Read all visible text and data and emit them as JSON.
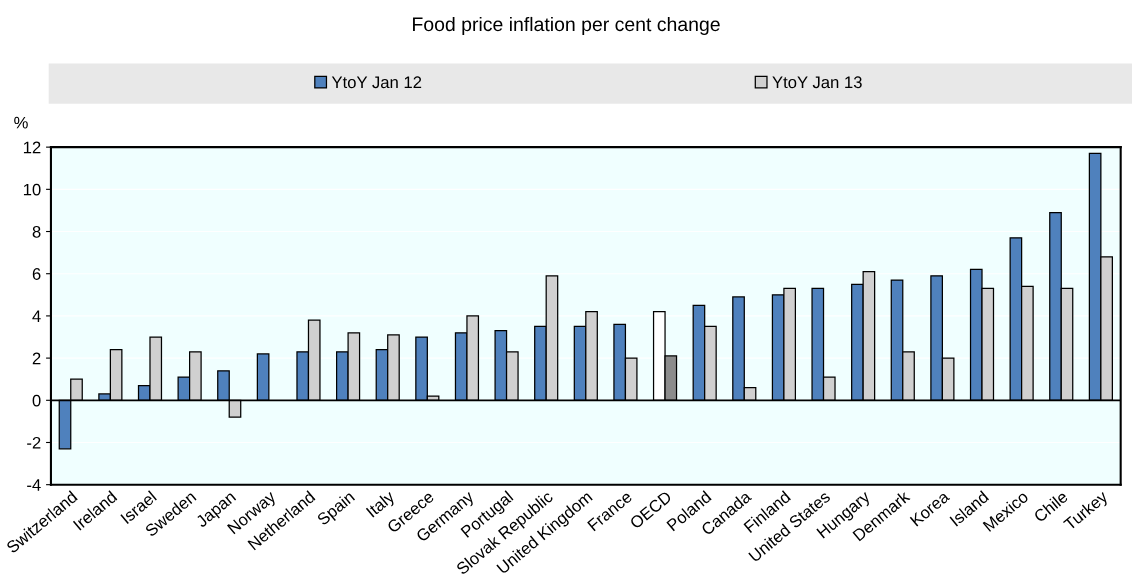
{
  "chart_data": {
    "type": "bar",
    "title": "Food price inflation per cent change",
    "ylabel": "%",
    "categories": [
      "Switzerland",
      "Ireland",
      "Israel",
      "Sweden",
      "Japan",
      "Norway",
      "Netherland",
      "Spain",
      "Italy",
      "Greece",
      "Germany",
      "Portugal",
      "Slovak Republic",
      "United Kingdom",
      "France",
      "OECD",
      "Poland",
      "Canada",
      "Finland",
      "United States",
      "Hungary",
      "Denmark",
      "Korea",
      "Island",
      "Mexico",
      "Chile",
      "Turkey"
    ],
    "series": [
      {
        "name": "YtoY Jan 12",
        "color": "#4f81bd",
        "colors": [
          "#4f81bd",
          "#4f81bd",
          "#4f81bd",
          "#4f81bd",
          "#4f81bd",
          "#4f81bd",
          "#4f81bd",
          "#4f81bd",
          "#4f81bd",
          "#4f81bd",
          "#4f81bd",
          "#4f81bd",
          "#4f81bd",
          "#4f81bd",
          "#4f81bd",
          "#ffffff",
          "#4f81bd",
          "#4f81bd",
          "#4f81bd",
          "#4f81bd",
          "#4f81bd",
          "#4f81bd",
          "#4f81bd",
          "#4f81bd",
          "#4f81bd",
          "#4f81bd",
          "#4f81bd"
        ],
        "values": [
          -2.3,
          0.3,
          0.7,
          1.1,
          1.4,
          2.2,
          2.3,
          2.3,
          2.4,
          3.0,
          3.2,
          3.3,
          3.5,
          3.5,
          3.6,
          4.2,
          4.5,
          4.9,
          5.0,
          5.3,
          5.5,
          5.7,
          5.9,
          6.2,
          7.7,
          8.9,
          11.7
        ]
      },
      {
        "name": "YtoY Jan 13",
        "color": "#d0d0d0",
        "colors": [
          "#d0d0d0",
          "#d0d0d0",
          "#d0d0d0",
          "#d0d0d0",
          "#d0d0d0",
          "#d0d0d0",
          "#d0d0d0",
          "#d0d0d0",
          "#d0d0d0",
          "#d0d0d0",
          "#d0d0d0",
          "#d0d0d0",
          "#d0d0d0",
          "#d0d0d0",
          "#d0d0d0",
          "#8c8c8c",
          "#d0d0d0",
          "#d0d0d0",
          "#d0d0d0",
          "#d0d0d0",
          "#d0d0d0",
          "#d0d0d0",
          "#d0d0d0",
          "#d0d0d0",
          "#d0d0d0",
          "#d0d0d0",
          "#d0d0d0"
        ],
        "values": [
          1.0,
          2.4,
          3.0,
          2.3,
          -0.8,
          null,
          3.8,
          3.2,
          3.1,
          0.2,
          4.0,
          2.3,
          5.9,
          4.2,
          2.0,
          2.1,
          3.5,
          0.6,
          5.3,
          1.1,
          6.1,
          2.3,
          2.0,
          5.3,
          5.4,
          5.3,
          6.8
        ]
      }
    ],
    "ylim": [
      -4,
      12
    ],
    "yticks": [
      -4,
      -2,
      0,
      2,
      4,
      6,
      8,
      10,
      12
    ],
    "grid": "y",
    "legend": "top"
  }
}
